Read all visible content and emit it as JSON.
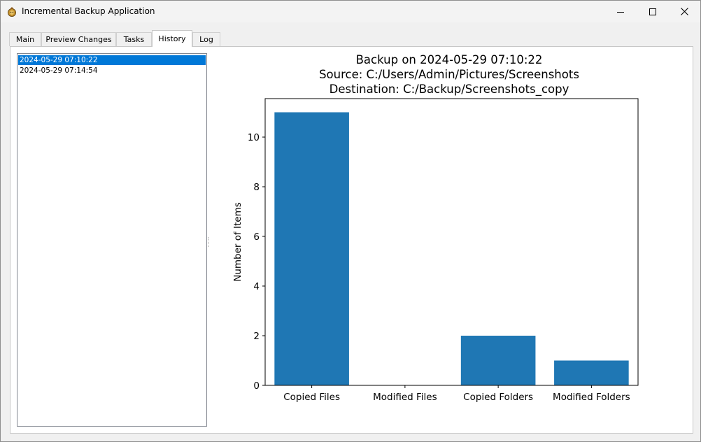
{
  "window": {
    "title": "Incremental Backup Application"
  },
  "tabs": [
    {
      "label": "Main"
    },
    {
      "label": "Preview Changes"
    },
    {
      "label": "Tasks"
    },
    {
      "label": "History"
    },
    {
      "label": "Log"
    }
  ],
  "history": {
    "items": [
      {
        "label": "2024-05-29 07:10:22"
      },
      {
        "label": "2024-05-29 07:14:54"
      }
    ]
  },
  "chart_data": {
    "type": "bar",
    "title_lines": [
      "Backup on 2024-05-29 07:10:22",
      "Source: C:/Users/Admin/Pictures/Screenshots",
      "Destination: C:/Backup/Screenshots_copy"
    ],
    "categories": [
      "Copied Files",
      "Modified Files",
      "Copied Folders",
      "Modified Folders"
    ],
    "values": [
      11,
      0,
      2,
      1
    ],
    "xlabel": "",
    "ylabel": "Number of Items",
    "ylim": [
      0,
      11.55
    ],
    "yticks": [
      0,
      2,
      4,
      6,
      8,
      10
    ],
    "bar_color": "#1f77b4",
    "grid": false
  }
}
